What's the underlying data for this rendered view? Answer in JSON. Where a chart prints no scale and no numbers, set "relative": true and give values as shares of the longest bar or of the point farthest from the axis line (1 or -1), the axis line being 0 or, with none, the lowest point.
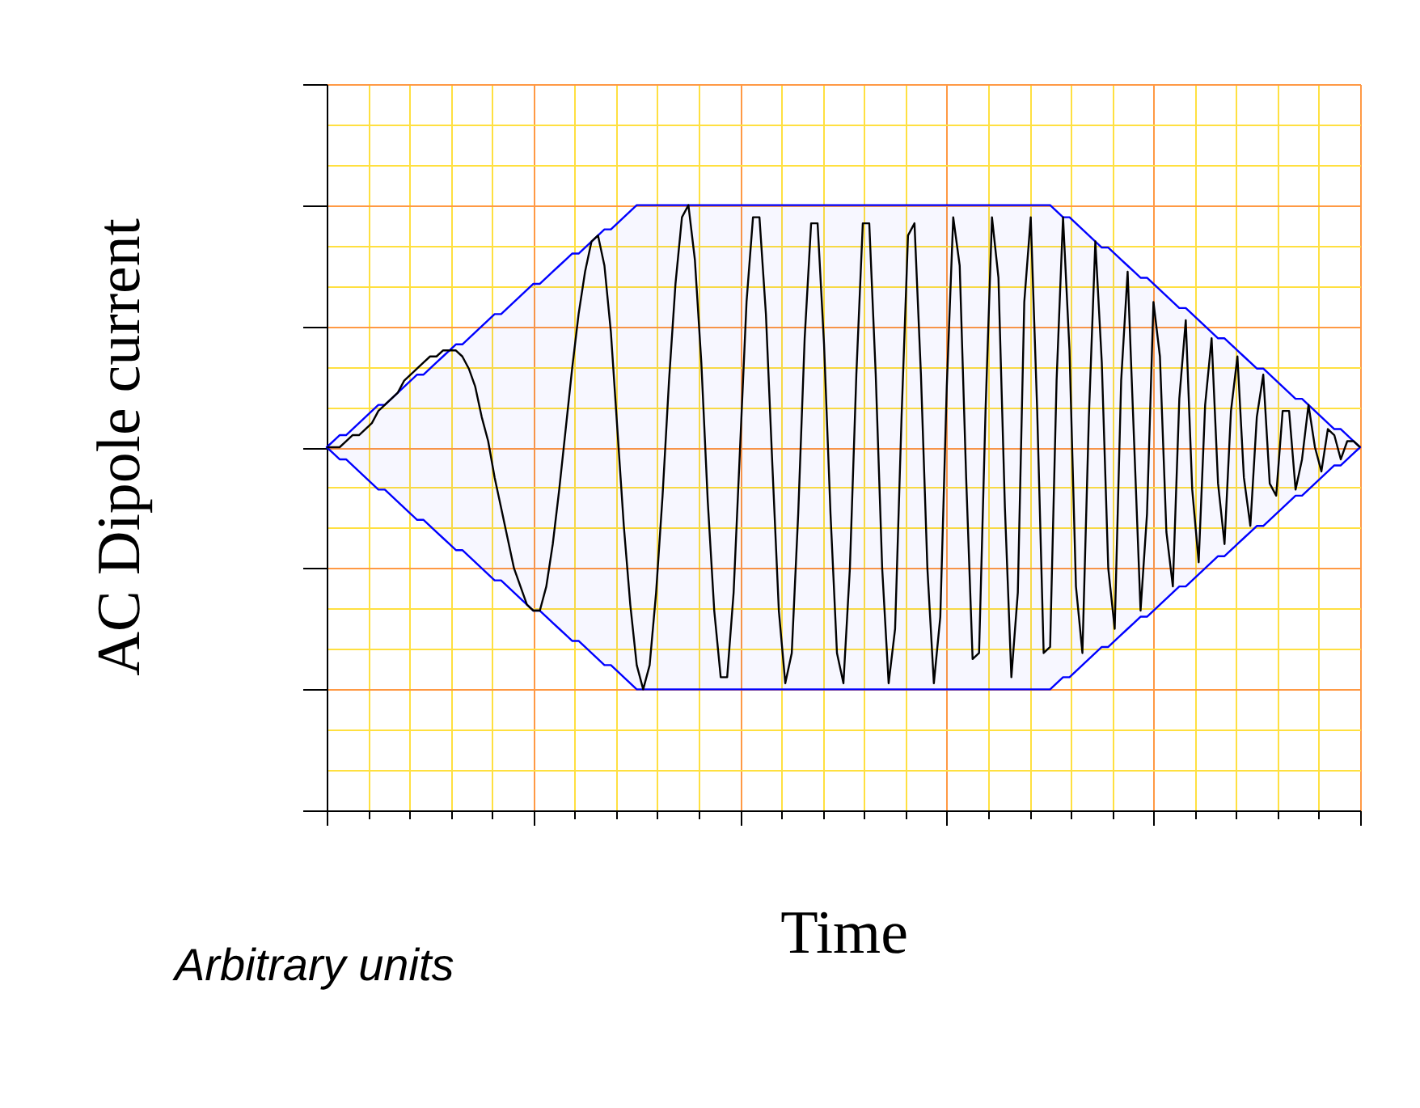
{
  "chart_data": {
    "type": "line",
    "xlabel": "Time",
    "ylabel": "AC Dipole current",
    "annotations": [
      "Arbitrary units"
    ],
    "relative": true,
    "tick_labels": false,
    "grid": true,
    "categories": [
      null,
      null,
      null,
      null,
      null,
      null,
      null,
      null,
      null,
      null,
      null,
      null,
      null,
      null,
      null,
      null,
      null,
      null,
      null,
      null,
      null,
      null,
      null,
      null,
      null,
      null,
      null,
      null,
      null,
      null,
      null,
      null,
      null,
      null,
      null,
      null,
      null,
      null,
      null,
      null,
      null,
      null,
      null,
      null,
      null,
      null,
      null,
      null,
      null,
      null,
      null,
      null,
      null,
      null,
      null,
      null,
      null,
      null,
      null,
      null,
      null,
      null,
      null,
      null,
      null,
      null,
      null,
      null,
      null,
      null,
      null,
      null,
      null,
      null,
      null,
      null,
      null,
      null,
      null,
      null,
      null,
      null,
      null,
      null,
      null,
      null,
      null,
      null,
      null,
      null,
      null,
      null,
      null,
      null,
      null,
      null,
      null,
      null,
      null,
      null,
      null,
      null,
      null,
      null,
      null,
      null,
      null,
      null,
      null,
      null,
      null,
      null,
      null,
      null,
      null,
      null,
      null,
      null,
      null,
      null,
      null,
      null,
      null,
      null,
      null,
      null,
      null,
      null,
      null,
      null,
      null,
      null,
      null,
      null,
      null,
      null,
      null,
      null,
      null,
      null,
      null,
      null,
      null,
      null,
      null,
      null,
      null,
      null,
      null,
      null,
      null,
      null,
      null,
      null,
      null,
      null,
      null,
      null,
      null,
      null,
      null
    ],
    "series": [
      {
        "color": "#000000",
        "values": [
          0.6,
          0.6,
          0.6,
          0.61,
          0.62,
          0.62,
          0.63,
          0.64,
          0.66,
          0.67,
          0.68,
          0.69,
          0.71,
          0.72,
          0.73,
          0.74,
          0.75,
          0.75,
          0.76,
          0.76,
          0.76,
          0.75,
          0.73,
          0.7,
          0.65,
          0.61,
          0.55,
          0.5,
          0.45,
          0.4,
          0.37,
          0.34,
          0.33,
          0.33,
          0.37,
          0.44,
          0.53,
          0.63,
          0.73,
          0.82,
          0.89,
          0.94,
          0.95,
          0.9,
          0.79,
          0.63,
          0.47,
          0.34,
          0.24,
          0.2,
          0.24,
          0.36,
          0.52,
          0.71,
          0.87,
          0.98,
          1,
          0.91,
          0.74,
          0.51,
          0.33,
          0.22,
          0.22,
          0.36,
          0.6,
          0.84,
          0.98,
          0.98,
          0.82,
          0.57,
          0.33,
          0.21,
          0.26,
          0.49,
          0.78,
          0.97,
          0.97,
          0.77,
          0.49,
          0.26,
          0.21,
          0.4,
          0.72,
          0.97,
          0.97,
          0.72,
          0.4,
          0.21,
          0.3,
          0.65,
          0.95,
          0.97,
          0.72,
          0.4,
          0.21,
          0.32,
          0.7,
          0.98,
          0.9,
          0.55,
          0.25,
          0.26,
          0.66,
          0.98,
          0.88,
          0.5,
          0.22,
          0.36,
          0.84,
          0.98,
          0.66,
          0.26,
          0.27,
          0.71,
          0.98,
          0.76,
          0.37,
          0.26,
          0.65,
          0.94,
          0.74,
          0.4,
          0.3,
          0.71,
          0.89,
          0.61,
          0.33,
          0.49,
          0.84,
          0.75,
          0.46,
          0.37,
          0.68,
          0.81,
          0.53,
          0.41,
          0.67,
          0.78,
          0.54,
          0.44,
          0.66,
          0.75,
          0.55,
          0.47,
          0.65,
          0.72,
          0.54,
          0.52,
          0.66,
          0.66,
          0.53,
          0.58,
          0.67,
          0.6,
          0.56,
          0.63,
          0.62,
          0.58,
          0.61,
          0.61,
          0.6
        ],
        "upper": [
          0.6,
          0.61,
          0.62,
          0.62,
          0.63,
          0.64,
          0.65,
          0.66,
          0.67,
          0.67,
          0.68,
          0.69,
          0.7,
          0.71,
          0.72,
          0.72,
          0.73,
          0.74,
          0.75,
          0.76,
          0.77,
          0.77,
          0.78,
          0.79,
          0.8,
          0.81,
          0.82,
          0.82,
          0.83,
          0.84,
          0.85,
          0.86,
          0.87,
          0.87,
          0.88,
          0.89,
          0.9,
          0.91,
          0.92,
          0.92,
          0.93,
          0.94,
          0.95,
          0.96,
          0.96,
          0.97,
          0.98,
          0.99,
          1,
          1,
          1,
          1,
          1,
          1,
          1,
          1,
          1,
          1,
          1,
          1,
          1,
          1,
          1,
          1,
          1,
          1,
          1,
          1,
          1,
          1,
          1,
          1,
          1,
          1,
          1,
          1,
          1,
          1,
          1,
          1,
          1,
          1,
          1,
          1,
          1,
          1,
          1,
          1,
          1,
          1,
          1,
          1,
          1,
          1,
          1,
          1,
          1,
          1,
          1,
          1,
          1,
          1,
          1,
          1,
          1,
          1,
          1,
          1,
          1,
          1,
          1,
          1,
          1,
          0.99,
          0.98,
          0.98,
          0.97,
          0.96,
          0.95,
          0.94,
          0.93,
          0.93,
          0.92,
          0.91,
          0.9,
          0.89,
          0.88,
          0.88,
          0.87,
          0.86,
          0.85,
          0.84,
          0.83,
          0.83,
          0.82,
          0.81,
          0.8,
          0.79,
          0.78,
          0.78,
          0.77,
          0.76,
          0.75,
          0.74,
          0.73,
          0.73,
          0.72,
          0.71,
          0.7,
          0.69,
          0.68,
          0.68,
          0.67,
          0.66,
          0.65,
          0.64,
          0.63,
          0.63,
          0.62,
          0.61,
          0.6
        ],
        "lower": [
          0.6,
          0.59,
          0.58,
          0.58,
          0.57,
          0.56,
          0.55,
          0.54,
          0.53,
          0.53,
          0.52,
          0.51,
          0.5,
          0.49,
          0.48,
          0.48,
          0.47,
          0.46,
          0.45,
          0.44,
          0.43,
          0.43,
          0.42,
          0.41,
          0.4,
          0.39,
          0.38,
          0.38,
          0.37,
          0.36,
          0.35,
          0.34,
          0.33,
          0.33,
          0.32,
          0.31,
          0.3,
          0.29,
          0.28,
          0.28,
          0.27,
          0.26,
          0.25,
          0.24,
          0.24,
          0.23,
          0.22,
          0.21,
          0.2,
          0.2,
          0.2,
          0.2,
          0.2,
          0.2,
          0.2,
          0.2,
          0.2,
          0.2,
          0.2,
          0.2,
          0.2,
          0.2,
          0.2,
          0.2,
          0.2,
          0.2,
          0.2,
          0.2,
          0.2,
          0.2,
          0.2,
          0.2,
          0.2,
          0.2,
          0.2,
          0.2,
          0.2,
          0.2,
          0.2,
          0.2,
          0.2,
          0.2,
          0.2,
          0.2,
          0.2,
          0.2,
          0.2,
          0.2,
          0.2,
          0.2,
          0.2,
          0.2,
          0.2,
          0.2,
          0.2,
          0.2,
          0.2,
          0.2,
          0.2,
          0.2,
          0.2,
          0.2,
          0.2,
          0.2,
          0.2,
          0.2,
          0.2,
          0.2,
          0.2,
          0.2,
          0.2,
          0.2,
          0.2,
          0.21,
          0.22,
          0.22,
          0.23,
          0.24,
          0.25,
          0.26,
          0.27,
          0.27,
          0.28,
          0.29,
          0.3,
          0.31,
          0.32,
          0.32,
          0.33,
          0.34,
          0.35,
          0.36,
          0.37,
          0.37,
          0.38,
          0.39,
          0.4,
          0.41,
          0.42,
          0.42,
          0.43,
          0.44,
          0.45,
          0.46,
          0.47,
          0.47,
          0.48,
          0.49,
          0.5,
          0.51,
          0.52,
          0.52,
          0.53,
          0.54,
          0.55,
          0.56,
          0.57,
          0.57,
          0.58,
          0.59,
          0.6
        ]
      }
    ]
  }
}
